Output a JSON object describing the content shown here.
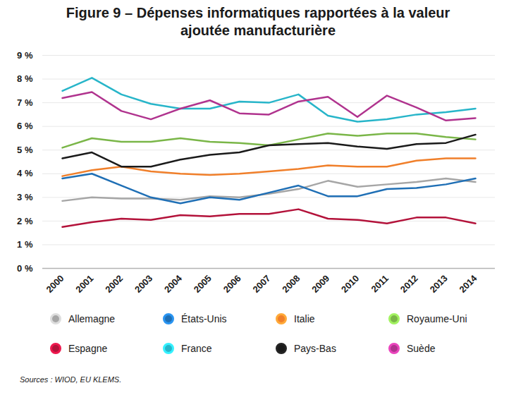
{
  "chart_data": {
    "type": "line",
    "title": "Figure 9 – Dépenses informatiques rapportées à la valeur ajoutée manufacturière",
    "source": "Sources : WIOD, EU KLEMS.",
    "x": [
      2000,
      2001,
      2002,
      2003,
      2004,
      2005,
      2006,
      2007,
      2008,
      2009,
      2010,
      2011,
      2012,
      2013,
      2014
    ],
    "xlim": [
      2000,
      2014
    ],
    "xticks": [
      2000,
      2001,
      2002,
      2003,
      2004,
      2005,
      2006,
      2007,
      2008,
      2009,
      2010,
      2011,
      2012,
      2013,
      2014
    ],
    "ylim": [
      0,
      9
    ],
    "yticks": [
      {
        "value": 0,
        "label": "0 %"
      },
      {
        "value": 1,
        "label": "1 %"
      },
      {
        "value": 2,
        "label": "2 %"
      },
      {
        "value": 3,
        "label": "3 %"
      },
      {
        "value": 4,
        "label": "4 %"
      },
      {
        "value": 5,
        "label": "5 %"
      },
      {
        "value": 6,
        "label": "6 %"
      },
      {
        "value": 7,
        "label": "7 %"
      },
      {
        "value": 8,
        "label": "8 %"
      },
      {
        "value": 9,
        "label": "9 %"
      }
    ],
    "grid": true,
    "legend": "bottom",
    "series": [
      {
        "name": "Allemagne",
        "color": "#a6a6a6",
        "values": [
          2.85,
          3.0,
          2.95,
          2.95,
          2.9,
          3.05,
          3.0,
          3.15,
          3.35,
          3.7,
          3.45,
          3.55,
          3.65,
          3.8,
          3.65
        ]
      },
      {
        "name": "États-Unis",
        "color": "#1f6fb5",
        "values": [
          3.8,
          4.0,
          3.5,
          3.0,
          2.75,
          3.0,
          2.9,
          3.2,
          3.5,
          3.05,
          3.05,
          3.35,
          3.4,
          3.55,
          3.8
        ]
      },
      {
        "name": "Italie",
        "color": "#f07f2a",
        "values": [
          3.9,
          4.15,
          4.3,
          4.1,
          4.0,
          3.95,
          4.0,
          4.1,
          4.2,
          4.35,
          4.3,
          4.3,
          4.55,
          4.65,
          4.65
        ]
      },
      {
        "name": "Royaume-Uni",
        "color": "#7ab648",
        "values": [
          5.1,
          5.5,
          5.35,
          5.35,
          5.5,
          5.35,
          5.3,
          5.2,
          5.45,
          5.7,
          5.6,
          5.7,
          5.7,
          5.55,
          5.45
        ]
      },
      {
        "name": "Espagne",
        "color": "#b3123a",
        "values": [
          1.75,
          1.95,
          2.1,
          2.05,
          2.25,
          2.2,
          2.3,
          2.3,
          2.5,
          2.1,
          2.05,
          1.9,
          2.15,
          2.15,
          1.9
        ]
      },
      {
        "name": "France",
        "color": "#27b5c9",
        "values": [
          7.5,
          8.05,
          7.35,
          6.95,
          6.75,
          6.75,
          7.05,
          7.0,
          7.35,
          6.45,
          6.2,
          6.3,
          6.5,
          6.6,
          6.75
        ]
      },
      {
        "name": "Pays-Bas",
        "color": "#1a1a1a",
        "values": [
          4.65,
          4.9,
          4.3,
          4.3,
          4.6,
          4.8,
          4.9,
          5.2,
          5.25,
          5.3,
          5.15,
          5.05,
          5.25,
          5.3,
          5.65
        ]
      },
      {
        "name": "Suède",
        "color": "#b0338e",
        "values": [
          7.2,
          7.45,
          6.65,
          6.3,
          6.75,
          7.1,
          6.55,
          6.5,
          7.05,
          7.25,
          6.4,
          7.3,
          6.8,
          6.25,
          6.35
        ]
      }
    ]
  }
}
